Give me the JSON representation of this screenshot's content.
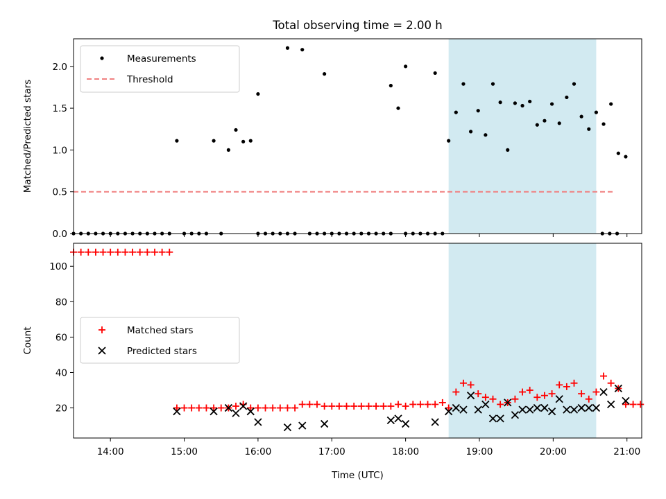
{
  "chart_data": [
    {
      "type": "scatter",
      "title": "Total observing time = 2.00 h",
      "ylabel": "Matched/Predicted stars",
      "xlabel": "",
      "xlim": [
        "13:30",
        "21:12"
      ],
      "ylim": [
        0,
        2.33
      ],
      "yticks": [
        "0.0",
        "0.5",
        "1.0",
        "1.5",
        "2.0"
      ],
      "grid": false,
      "legend_position": "top-left",
      "shaded_region": {
        "from": "18:35",
        "to": "20:35",
        "color": "#add8e6"
      },
      "threshold": {
        "name": "Threshold",
        "value": 0.5,
        "from": "13:30",
        "to": "20:50",
        "color": "#f08080",
        "style": "dashed"
      },
      "series": [
        {
          "name": "Measurements",
          "color": "#000000",
          "marker": "dot",
          "points": [
            [
              "13:30",
              0
            ],
            [
              "13:36",
              0
            ],
            [
              "13:42",
              0
            ],
            [
              "13:48",
              0
            ],
            [
              "13:54",
              0
            ],
            [
              "14:00",
              0
            ],
            [
              "14:06",
              0
            ],
            [
              "14:12",
              0
            ],
            [
              "14:18",
              0
            ],
            [
              "14:24",
              0
            ],
            [
              "14:30",
              0
            ],
            [
              "14:36",
              0
            ],
            [
              "14:42",
              0
            ],
            [
              "14:48",
              0
            ],
            [
              "14:54",
              1.11
            ],
            [
              "15:00",
              0
            ],
            [
              "15:06",
              0
            ],
            [
              "15:12",
              0
            ],
            [
              "15:18",
              0
            ],
            [
              "15:24",
              1.11
            ],
            [
              "15:30",
              0
            ],
            [
              "15:36",
              1.0
            ],
            [
              "15:42",
              1.24
            ],
            [
              "15:48",
              1.1
            ],
            [
              "15:54",
              1.11
            ],
            [
              "16:00",
              0
            ],
            [
              "15:60",
              1.67
            ],
            [
              "16:06",
              0
            ],
            [
              "16:12",
              0
            ],
            [
              "16:18",
              0
            ],
            [
              "16:24",
              0
            ],
            [
              "16:24",
              2.22
            ],
            [
              "16:30",
              0
            ],
            [
              "16:36",
              2.2
            ],
            [
              "16:42",
              0
            ],
            [
              "16:48",
              0
            ],
            [
              "16:54",
              0
            ],
            [
              "16:54",
              1.91
            ],
            [
              "17:00",
              0
            ],
            [
              "17:06",
              0
            ],
            [
              "17:12",
              0
            ],
            [
              "17:18",
              0
            ],
            [
              "17:24",
              0
            ],
            [
              "17:30",
              0
            ],
            [
              "17:36",
              0
            ],
            [
              "17:42",
              0
            ],
            [
              "17:48",
              0
            ],
            [
              "17:48",
              1.77
            ],
            [
              "17:54",
              1.5
            ],
            [
              "18:00",
              2.0
            ],
            [
              "18:00",
              0
            ],
            [
              "18:06",
              0
            ],
            [
              "18:12",
              0
            ],
            [
              "18:18",
              0
            ],
            [
              "18:24",
              0
            ],
            [
              "18:24",
              1.92
            ],
            [
              "18:30",
              0
            ],
            [
              "18:35",
              1.11
            ],
            [
              "18:41",
              1.45
            ],
            [
              "18:47",
              1.79
            ],
            [
              "18:53",
              1.22
            ],
            [
              "18:59",
              1.47
            ],
            [
              "19:05",
              1.18
            ],
            [
              "19:11",
              1.79
            ],
            [
              "19:17",
              1.57
            ],
            [
              "19:23",
              1.0
            ],
            [
              "19:29",
              1.56
            ],
            [
              "19:35",
              1.53
            ],
            [
              "19:41",
              1.58
            ],
            [
              "19:47",
              1.3
            ],
            [
              "19:53",
              1.35
            ],
            [
              "19:59",
              1.55
            ],
            [
              "20:05",
              1.32
            ],
            [
              "20:11",
              1.63
            ],
            [
              "20:17",
              1.79
            ],
            [
              "20:23",
              1.4
            ],
            [
              "20:29",
              1.25
            ],
            [
              "20:35",
              1.45
            ],
            [
              "20:41",
              1.31
            ],
            [
              "20:47",
              1.55
            ],
            [
              "20:53",
              0.96
            ],
            [
              "20:59",
              0.92
            ],
            [
              "20:40",
              0
            ],
            [
              "20:46",
              0
            ],
            [
              "20:52",
              0
            ]
          ]
        }
      ]
    },
    {
      "type": "scatter",
      "title": "",
      "ylabel": "Count",
      "xlabel": "Time (UTC)",
      "xlim": [
        "13:30",
        "21:12"
      ],
      "ylim": [
        3,
        113
      ],
      "xticks": [
        "14:00",
        "15:00",
        "16:00",
        "17:00",
        "18:00",
        "19:00",
        "20:00",
        "21:00"
      ],
      "yticks": [
        "20",
        "40",
        "60",
        "80",
        "100"
      ],
      "grid": false,
      "legend_position": "center-left",
      "shaded_region": {
        "from": "18:35",
        "to": "20:35",
        "color": "#add8e6"
      },
      "series": [
        {
          "name": "Matched stars",
          "color": "#ff0000",
          "marker": "plus",
          "points": [
            [
              "13:30",
              108
            ],
            [
              "13:36",
              108
            ],
            [
              "13:42",
              108
            ],
            [
              "13:48",
              108
            ],
            [
              "13:54",
              108
            ],
            [
              "14:00",
              108
            ],
            [
              "14:06",
              108
            ],
            [
              "14:12",
              108
            ],
            [
              "14:18",
              108
            ],
            [
              "14:24",
              108
            ],
            [
              "14:30",
              108
            ],
            [
              "14:36",
              108
            ],
            [
              "14:42",
              108
            ],
            [
              "14:48",
              108
            ],
            [
              "14:54",
              20
            ],
            [
              "15:00",
              20
            ],
            [
              "15:06",
              20
            ],
            [
              "15:12",
              20
            ],
            [
              "15:18",
              20
            ],
            [
              "15:24",
              20
            ],
            [
              "15:30",
              20
            ],
            [
              "15:36",
              20
            ],
            [
              "15:42",
              21
            ],
            [
              "15:48",
              22
            ],
            [
              "15:54",
              20
            ],
            [
              "16:00",
              20
            ],
            [
              "16:06",
              20
            ],
            [
              "16:12",
              20
            ],
            [
              "16:18",
              20
            ],
            [
              "16:24",
              20
            ],
            [
              "16:30",
              20
            ],
            [
              "16:36",
              22
            ],
            [
              "16:42",
              22
            ],
            [
              "16:48",
              22
            ],
            [
              "16:54",
              21
            ],
            [
              "17:00",
              21
            ],
            [
              "17:06",
              21
            ],
            [
              "17:12",
              21
            ],
            [
              "17:18",
              21
            ],
            [
              "17:24",
              21
            ],
            [
              "17:30",
              21
            ],
            [
              "17:36",
              21
            ],
            [
              "17:42",
              21
            ],
            [
              "17:48",
              21
            ],
            [
              "17:54",
              22
            ],
            [
              "18:00",
              21
            ],
            [
              "18:06",
              22
            ],
            [
              "18:12",
              22
            ],
            [
              "18:18",
              22
            ],
            [
              "18:24",
              22
            ],
            [
              "18:30",
              23
            ],
            [
              "18:35",
              20
            ],
            [
              "18:41",
              29
            ],
            [
              "18:47",
              34
            ],
            [
              "18:53",
              33
            ],
            [
              "18:59",
              28
            ],
            [
              "19:05",
              26
            ],
            [
              "19:11",
              25
            ],
            [
              "19:17",
              22
            ],
            [
              "19:23",
              23
            ],
            [
              "19:29",
              25
            ],
            [
              "19:35",
              29
            ],
            [
              "19:41",
              30
            ],
            [
              "19:47",
              26
            ],
            [
              "19:53",
              27
            ],
            [
              "19:59",
              28
            ],
            [
              "20:05",
              33
            ],
            [
              "20:11",
              32
            ],
            [
              "20:17",
              34
            ],
            [
              "20:23",
              28
            ],
            [
              "20:29",
              25
            ],
            [
              "20:35",
              29
            ],
            [
              "20:41",
              38
            ],
            [
              "20:47",
              34
            ],
            [
              "20:53",
              31
            ],
            [
              "20:59",
              22
            ],
            [
              "21:05",
              22
            ],
            [
              "21:11",
              22
            ]
          ]
        },
        {
          "name": "Predicted stars",
          "color": "#000000",
          "marker": "x",
          "points": [
            [
              "14:54",
              18
            ],
            [
              "15:24",
              18
            ],
            [
              "15:36",
              20
            ],
            [
              "15:42",
              17
            ],
            [
              "15:48",
              21
            ],
            [
              "15:54",
              18
            ],
            [
              "16:00",
              12
            ],
            [
              "16:24",
              9
            ],
            [
              "16:36",
              10
            ],
            [
              "16:54",
              11
            ],
            [
              "17:48",
              13
            ],
            [
              "17:54",
              14
            ],
            [
              "18:00",
              11
            ],
            [
              "18:24",
              12
            ],
            [
              "18:35",
              18
            ],
            [
              "18:41",
              20
            ],
            [
              "18:47",
              19
            ],
            [
              "18:53",
              27
            ],
            [
              "18:59",
              19
            ],
            [
              "19:05",
              22
            ],
            [
              "19:11",
              14
            ],
            [
              "19:17",
              14
            ],
            [
              "19:23",
              23
            ],
            [
              "19:29",
              16
            ],
            [
              "19:35",
              19
            ],
            [
              "19:41",
              19
            ],
            [
              "19:47",
              20
            ],
            [
              "19:53",
              20
            ],
            [
              "19:59",
              18
            ],
            [
              "20:05",
              25
            ],
            [
              "20:11",
              19
            ],
            [
              "20:17",
              19
            ],
            [
              "20:23",
              20
            ],
            [
              "20:29",
              20
            ],
            [
              "20:35",
              20
            ],
            [
              "20:41",
              29
            ],
            [
              "20:47",
              22
            ],
            [
              "20:53",
              31
            ],
            [
              "20:59",
              24
            ]
          ]
        }
      ]
    }
  ]
}
